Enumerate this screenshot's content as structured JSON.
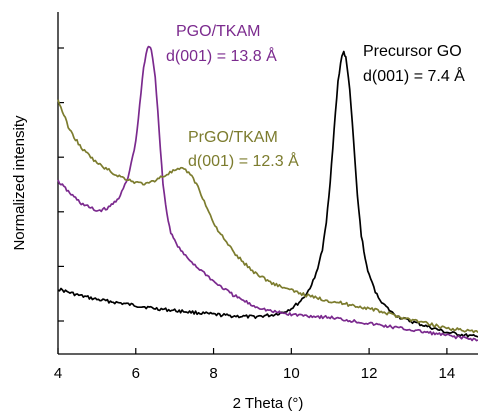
{
  "chart_data": {
    "type": "line",
    "title": "",
    "xlabel": "2 Theta (°)",
    "ylabel": "Normalized intensity",
    "xlim": [
      4,
      14.8
    ],
    "ylim": [
      0,
      1.0
    ],
    "x_ticks": [
      4,
      6,
      8,
      10,
      12,
      14
    ],
    "x_tick_labels": [
      "4",
      "6",
      "8",
      "10",
      "12",
      "14"
    ],
    "y_tick_labels_shown": false,
    "grid": false,
    "legend": "none",
    "series": [
      {
        "name": "Precursor GO",
        "color": "#000000",
        "x": [
          4.0,
          4.5,
          5.0,
          5.5,
          6.0,
          6.5,
          7.0,
          7.5,
          8.0,
          8.5,
          9.0,
          9.5,
          9.8,
          10.0,
          10.2,
          10.4,
          10.6,
          10.8,
          10.9,
          11.0,
          11.1,
          11.2,
          11.3,
          11.35,
          11.4,
          11.5,
          11.6,
          11.7,
          11.8,
          11.9,
          12.0,
          12.2,
          12.4,
          12.6,
          12.8,
          13.0,
          13.5,
          14.0,
          14.5,
          14.8
        ],
        "y": [
          0.19,
          0.17,
          0.155,
          0.145,
          0.135,
          0.125,
          0.118,
          0.112,
          0.105,
          0.1,
          0.097,
          0.103,
          0.113,
          0.125,
          0.145,
          0.175,
          0.225,
          0.32,
          0.41,
          0.55,
          0.72,
          0.88,
          0.97,
          0.98,
          0.96,
          0.86,
          0.68,
          0.5,
          0.37,
          0.29,
          0.235,
          0.17,
          0.135,
          0.11,
          0.095,
          0.085,
          0.065,
          0.045,
          0.035,
          0.03
        ]
      },
      {
        "name": "PGO/TKAM",
        "color": "#7b2a8e",
        "x": [
          4.0,
          4.3,
          4.6,
          5.0,
          5.3,
          5.6,
          5.8,
          6.0,
          6.1,
          6.2,
          6.3,
          6.35,
          6.4,
          6.5,
          6.6,
          6.7,
          6.8,
          6.9,
          7.0,
          7.2,
          7.4,
          7.6,
          7.8,
          8.0,
          8.5,
          9.0,
          9.5,
          10.0,
          10.5,
          11.0,
          12.0,
          13.0,
          14.0,
          14.8
        ],
        "y": [
          0.55,
          0.51,
          0.475,
          0.45,
          0.46,
          0.5,
          0.56,
          0.68,
          0.8,
          0.93,
          0.99,
          1.0,
          0.99,
          0.9,
          0.72,
          0.54,
          0.44,
          0.38,
          0.35,
          0.31,
          0.285,
          0.26,
          0.24,
          0.215,
          0.17,
          0.135,
          0.115,
          0.105,
          0.1,
          0.095,
          0.075,
          0.055,
          0.035,
          0.02
        ]
      },
      {
        "name": "PrGO/TKAM",
        "color": "#7c7c2e",
        "x": [
          4.0,
          4.3,
          4.6,
          5.0,
          5.5,
          6.0,
          6.3,
          6.6,
          7.0,
          7.2,
          7.4,
          7.6,
          7.8,
          8.0,
          8.3,
          8.6,
          9.0,
          9.5,
          10.0,
          10.5,
          11.0,
          12.0,
          13.0,
          14.0,
          14.8
        ],
        "y": [
          0.82,
          0.72,
          0.66,
          0.61,
          0.57,
          0.545,
          0.54,
          0.56,
          0.585,
          0.59,
          0.575,
          0.53,
          0.47,
          0.41,
          0.35,
          0.3,
          0.25,
          0.21,
          0.185,
          0.165,
          0.15,
          0.125,
          0.09,
          0.06,
          0.045
        ]
      }
    ],
    "annotations": [
      {
        "series": "PGO/TKAM",
        "lines": [
          "PGO/TKAM",
          "d(001) = 13.8 Å"
        ],
        "color": "#7b2a8e"
      },
      {
        "series": "PrGO/TKAM",
        "lines": [
          "PrGO/TKAM",
          "d(001) = 12.3 Å"
        ],
        "color": "#7c7c2e"
      },
      {
        "series": "Precursor GO",
        "lines": [
          "Precursor GO",
          "d(001) = 7.4 Å"
        ],
        "color": "#000000"
      }
    ]
  }
}
